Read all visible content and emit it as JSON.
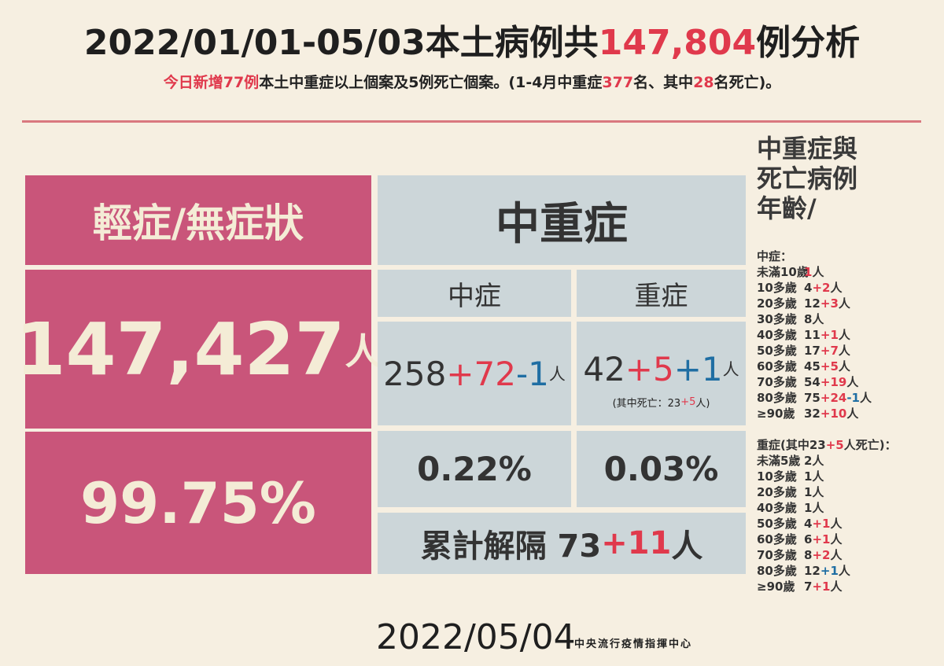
{
  "header": {
    "title": [
      {
        "text": "2022/01/01-05/03本土病例共"
      },
      {
        "text": "147,804",
        "tone": "red"
      },
      {
        "text": "例分析"
      }
    ],
    "subtitle": [
      {
        "text": "今日新增77例",
        "tone": "red"
      },
      {
        "text": "本土中重症以上個案及5例死亡個案。(1-4月中重症"
      },
      {
        "text": "377",
        "tone": "red"
      },
      {
        "text": "名、其中"
      },
      {
        "text": "28",
        "tone": "red"
      },
      {
        "text": "名死亡)。"
      }
    ]
  },
  "mild": {
    "label": "輕症/無症狀",
    "count": [
      {
        "text": "147,427"
      },
      {
        "text": "人",
        "size": "small"
      }
    ],
    "rate": "99.75%"
  },
  "serious": {
    "label": "中重症",
    "moderate": {
      "label": "中症",
      "count": [
        {
          "text": "258"
        },
        {
          "text": "+72",
          "tone": "red"
        },
        {
          "text": "-1",
          "tone": "blue"
        },
        {
          "text": "人",
          "size": "small"
        }
      ],
      "rate": "0.22%"
    },
    "severe": {
      "label": "重症",
      "count": [
        {
          "text": "42"
        },
        {
          "text": "+5",
          "tone": "red"
        },
        {
          "text": "+1",
          "tone": "blue"
        },
        {
          "text": "人",
          "size": "small"
        }
      ],
      "note": [
        {
          "text": "(其中死亡：23"
        },
        {
          "text": "+5",
          "tone": "red"
        },
        {
          "text": "人)"
        }
      ],
      "rate": "0.03%"
    },
    "released": [
      {
        "text": "累計解隔 73"
      },
      {
        "text": "+11",
        "tone": "red"
      },
      {
        "text": "人"
      }
    ]
  },
  "ages": {
    "title": [
      "中重症與",
      "死亡病例",
      "年齡/"
    ],
    "moderate_heading": [
      {
        "text": "中症："
      }
    ],
    "moderate": [
      {
        "age": "未滿10歲",
        "count": [
          {
            "text": "1",
            "tone": "red"
          },
          {
            "text": "人"
          }
        ]
      },
      {
        "age": "10多歲",
        "count": [
          {
            "text": "4"
          },
          {
            "text": "+2",
            "tone": "red"
          },
          {
            "text": "人"
          }
        ]
      },
      {
        "age": "20多歲",
        "count": [
          {
            "text": "12"
          },
          {
            "text": "+3",
            "tone": "red"
          },
          {
            "text": "人"
          }
        ]
      },
      {
        "age": "30多歲",
        "count": [
          {
            "text": "8人"
          }
        ]
      },
      {
        "age": "40多歲",
        "count": [
          {
            "text": "11"
          },
          {
            "text": "+1",
            "tone": "red"
          },
          {
            "text": "人"
          }
        ]
      },
      {
        "age": "50多歲",
        "count": [
          {
            "text": "17"
          },
          {
            "text": "+7",
            "tone": "red"
          },
          {
            "text": "人"
          }
        ]
      },
      {
        "age": "60多歲",
        "count": [
          {
            "text": "45"
          },
          {
            "text": "+5",
            "tone": "red"
          },
          {
            "text": "人"
          }
        ]
      },
      {
        "age": "70多歲",
        "count": [
          {
            "text": "54"
          },
          {
            "text": "+19",
            "tone": "red"
          },
          {
            "text": "人"
          }
        ]
      },
      {
        "age": "80多歲",
        "count": [
          {
            "text": "75"
          },
          {
            "text": "+24",
            "tone": "red"
          },
          {
            "text": "-1",
            "tone": "blue"
          },
          {
            "text": "人"
          }
        ]
      },
      {
        "age": "≥90歲",
        "count": [
          {
            "text": "32"
          },
          {
            "text": "+10",
            "tone": "red"
          },
          {
            "text": "人"
          }
        ]
      }
    ],
    "severe_heading": [
      {
        "text": "重症(其中23"
      },
      {
        "text": "+5",
        "tone": "red"
      },
      {
        "text": "人死亡)："
      }
    ],
    "severe": [
      {
        "age": "未滿5歲",
        "count": [
          {
            "text": "2人"
          }
        ]
      },
      {
        "age": "10多歲",
        "count": [
          {
            "text": "1人"
          }
        ]
      },
      {
        "age": "20多歲",
        "count": [
          {
            "text": "1人"
          }
        ]
      },
      {
        "age": "40多歲",
        "count": [
          {
            "text": "1人"
          }
        ]
      },
      {
        "age": "50多歲",
        "count": [
          {
            "text": "4"
          },
          {
            "text": "+1",
            "tone": "red"
          },
          {
            "text": "人"
          }
        ]
      },
      {
        "age": "60多歲",
        "count": [
          {
            "text": "6"
          },
          {
            "text": "+1",
            "tone": "red"
          },
          {
            "text": "人"
          }
        ]
      },
      {
        "age": "70多歲",
        "count": [
          {
            "text": "8"
          },
          {
            "text": "+2",
            "tone": "red"
          },
          {
            "text": "人"
          }
        ]
      },
      {
        "age": "80多歲",
        "count": [
          {
            "text": "12"
          },
          {
            "text": "+1",
            "tone": "blue"
          },
          {
            "text": "人"
          }
        ]
      },
      {
        "age": "≥90歲",
        "count": [
          {
            "text": "7"
          },
          {
            "text": "+1",
            "tone": "red"
          },
          {
            "text": "人"
          }
        ]
      }
    ]
  },
  "footer": {
    "date": "2022/05/04",
    "agency": "中央流行疫情指揮中心"
  }
}
